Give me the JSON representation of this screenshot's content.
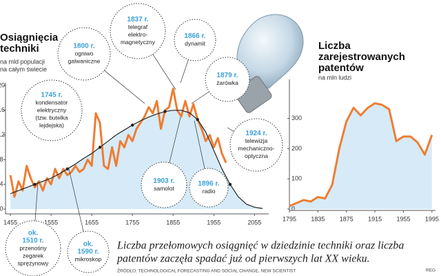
{
  "chart_data": [
    {
      "type": "line",
      "title": [
        "Osiągnięcia",
        "techniki"
      ],
      "subtitle": [
        "na mld populacji",
        "na całym świecie"
      ],
      "xlim": [
        1443,
        2090
      ],
      "ylim": [
        0,
        20
      ],
      "xticks": [
        1455,
        1555,
        1655,
        1755,
        1855,
        1955,
        2055
      ],
      "yticks": [
        0,
        4,
        8,
        12,
        16,
        20
      ],
      "series": [
        {
          "color": "#ee7d33",
          "x": [
            1455,
            1465,
            1475,
            1485,
            1495,
            1505,
            1515,
            1525,
            1535,
            1545,
            1555,
            1565,
            1575,
            1585,
            1595,
            1605,
            1615,
            1625,
            1635,
            1645,
            1655,
            1665,
            1675,
            1685,
            1695,
            1705,
            1715,
            1725,
            1735,
            1745,
            1755,
            1765,
            1775,
            1785,
            1795,
            1805,
            1815,
            1825,
            1835,
            1845,
            1855,
            1865,
            1875,
            1885,
            1895,
            1905,
            1915,
            1925,
            1935,
            1945,
            1955,
            1965,
            1975,
            1985
          ],
          "values": [
            5.5,
            2,
            4.5,
            3,
            7,
            5,
            3.5,
            4.5,
            3,
            5,
            4,
            6.5,
            5,
            6.5,
            5.5,
            6,
            7,
            6,
            6.5,
            8,
            7,
            15.5,
            14,
            7,
            6.5,
            10,
            7,
            11,
            10,
            12,
            11,
            13,
            14,
            15,
            16.5,
            15.5,
            17.5,
            13,
            16,
            16.5,
            19.5,
            16,
            15,
            17.5,
            15,
            17,
            14.5,
            13,
            11,
            12,
            10,
            11.5,
            9,
            7.5
          ]
        },
        {
          "color": "#222222",
          "fill": "#d6ebf7",
          "x": [
            1455,
            1475,
            1495,
            1515,
            1535,
            1555,
            1575,
            1595,
            1615,
            1635,
            1655,
            1675,
            1695,
            1715,
            1735,
            1755,
            1775,
            1795,
            1815,
            1835,
            1855,
            1875,
            1895,
            1915,
            1935,
            1955,
            1975,
            1995,
            2015,
            2035,
            2055,
            2075
          ],
          "values": [
            2.5,
            3,
            3.5,
            4,
            4.5,
            5,
            5.7,
            6.5,
            7.3,
            8.2,
            9,
            10,
            11,
            12,
            12.8,
            13.6,
            14.3,
            14.9,
            15.4,
            15.8,
            16,
            16,
            15.6,
            14.5,
            12.5,
            9.5,
            6.5,
            4,
            2,
            0.8,
            0.3,
            0.1
          ]
        }
      ],
      "annotations": [
        {
          "year": [
            "1745 r."
          ],
          "text": [
            "kondensator",
            "elektryczny",
            "(tzw. butelka",
            "lejdejska)"
          ]
        },
        {
          "year": [
            "1800 r."
          ],
          "text": [
            "ogniwo",
            "galwaniczne"
          ]
        },
        {
          "year": [
            "1837 r."
          ],
          "text": [
            "telegraf",
            "elektro-",
            "magnetyczny"
          ]
        },
        {
          "year": [
            "1866 r."
          ],
          "text": [
            "dynamit"
          ]
        },
        {
          "year": [
            "1879 r."
          ],
          "text": [
            "żarówka"
          ]
        },
        {
          "year": [
            "1924 r."
          ],
          "text": [
            "telewizja",
            "mechaniczno-",
            "optyczna"
          ]
        },
        {
          "year": [
            "1903 r."
          ],
          "text": [
            "samolot"
          ]
        },
        {
          "year": [
            "1896 r."
          ],
          "text": [
            "radio"
          ]
        },
        {
          "year": [
            "ok.",
            "1510 r."
          ],
          "text": [
            "przenośny",
            "zegarek",
            "sprężynowy"
          ]
        },
        {
          "year": [
            "ok.",
            "1590 r."
          ],
          "text": [
            "mikroskop"
          ]
        }
      ]
    },
    {
      "type": "area",
      "title": [
        "Liczba",
        "zarejestrowanych",
        "patentów"
      ],
      "subtitle": [
        "na mln ludzi"
      ],
      "xlim": [
        1795,
        2000
      ],
      "ylim": [
        0,
        420
      ],
      "xticks": [
        1795,
        1835,
        1875,
        1915,
        1955,
        1995
      ],
      "yticks": [
        0,
        100,
        200,
        300
      ],
      "series": [
        {
          "color": "#ee7d33",
          "fill": "#d6ebf7",
          "x": [
            1795,
            1805,
            1815,
            1825,
            1835,
            1845,
            1855,
            1865,
            1875,
            1885,
            1895,
            1905,
            1915,
            1925,
            1935,
            1945,
            1955,
            1965,
            1975,
            1985,
            1995
          ],
          "values": [
            10,
            20,
            30,
            25,
            40,
            35,
            80,
            200,
            290,
            335,
            310,
            335,
            350,
            345,
            330,
            225,
            240,
            240,
            220,
            180,
            245
          ]
        }
      ]
    }
  ],
  "caption": [
    "Liczba przełomowych osiągnięć w dziedzinie techniki oraz liczba",
    "patentów zaczęła spadać już od pierwszych lat XX wieku."
  ],
  "source": "ŹRÓDŁO: TECHNOLOGICAL FORECASTING AND SOCIAL CHANGE, NEW SCIENTIST",
  "credit": "REG"
}
